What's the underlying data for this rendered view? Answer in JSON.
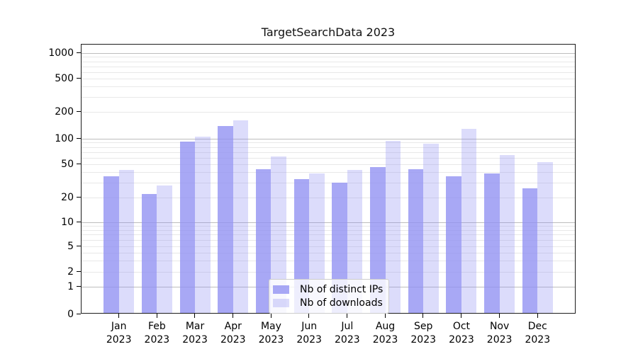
{
  "chart_data": {
    "type": "bar",
    "title": "TargetSearchData 2023",
    "x_categories": [
      "Jan",
      "Feb",
      "Mar",
      "Apr",
      "May",
      "Jun",
      "Jul",
      "Aug",
      "Sep",
      "Oct",
      "Nov",
      "Dec"
    ],
    "x_year": "2023",
    "series": [
      {
        "name": "Nb of distinct IPs",
        "values": [
          36,
          22,
          93,
          140,
          44,
          33,
          30,
          46,
          44,
          36,
          39,
          26
        ],
        "color": "rgba(143,143,242,0.78)"
      },
      {
        "name": "Nb of downloads",
        "values": [
          43,
          28,
          105,
          160,
          62,
          39,
          43,
          94,
          87,
          130,
          64,
          53
        ],
        "color": "rgba(143,143,242,0.31)"
      }
    ],
    "y_ticks": [
      0,
      1,
      2,
      5,
      10,
      20,
      50,
      100,
      200,
      500,
      1000
    ],
    "y_major_ticks": [
      1,
      10,
      100,
      1000
    ],
    "y_scale": "symlog",
    "ylim": [
      0,
      1260
    ],
    "grid": true,
    "legend_position": "lower center inside plot",
    "colors": {
      "bar_dark": "rgba(143,143,242,0.78)",
      "bar_light": "rgba(143,143,242,0.31)",
      "grid_major": "#bdbdbd",
      "grid_minor": "#e8e8e8",
      "spine": "#1c1c1c",
      "background": "#ffffff"
    }
  }
}
